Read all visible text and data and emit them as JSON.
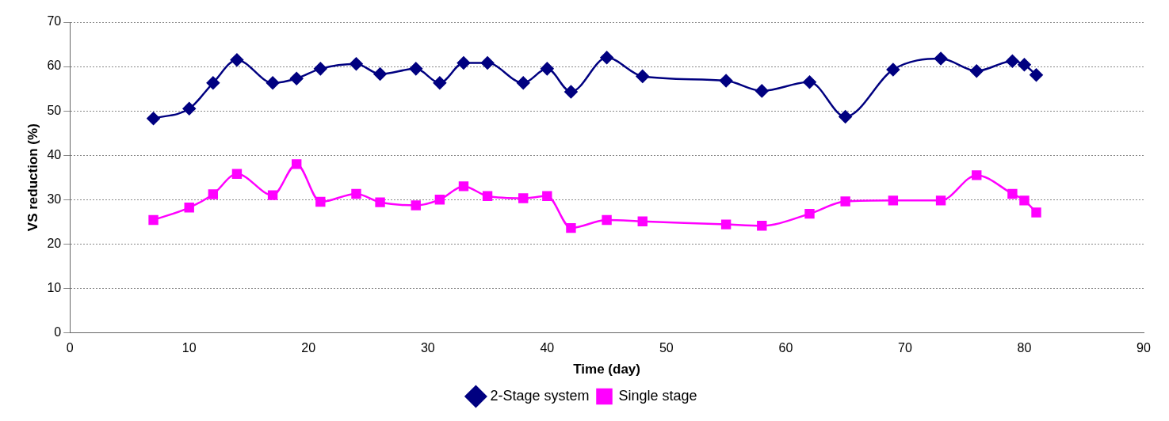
{
  "chart_data": {
    "type": "line",
    "xlabel": "Time (day)",
    "ylabel": "VS reduction (%)",
    "xlim": [
      0,
      90
    ],
    "xticks": [
      0,
      10,
      20,
      30,
      40,
      50,
      60,
      70,
      80,
      90
    ],
    "ylim": [
      0,
      70
    ],
    "yticks": [
      0,
      10,
      20,
      30,
      40,
      50,
      60,
      70
    ],
    "grid": "y",
    "legend": "bottom",
    "series": [
      {
        "name": "2-Stage system",
        "color": "#000080",
        "marker": "diamond",
        "x": [
          7,
          10,
          12,
          14,
          17,
          19,
          21,
          24,
          26,
          29,
          31,
          33,
          35,
          38,
          40,
          42,
          45,
          48,
          55,
          58,
          62,
          65,
          69,
          73,
          76,
          79,
          80,
          81
        ],
        "values": [
          48.3,
          50.5,
          56.3,
          61.5,
          56.3,
          57.3,
          59.5,
          60.6,
          58.3,
          59.5,
          56.3,
          60.8,
          60.8,
          56.3,
          59.5,
          54.3,
          62,
          57.8,
          56.8,
          54.5,
          56.5,
          48.7,
          59.3,
          61.8,
          59,
          61.2,
          60.4,
          58.1
        ]
      },
      {
        "name": "Single stage",
        "color": "#ff00ff",
        "marker": "square",
        "x": [
          7,
          10,
          12,
          14,
          17,
          19,
          21,
          24,
          26,
          29,
          31,
          33,
          35,
          38,
          40,
          42,
          45,
          48,
          55,
          58,
          62,
          65,
          69,
          73,
          76,
          79,
          80,
          81
        ],
        "values": [
          25.4,
          28.2,
          31.2,
          35.8,
          31,
          38,
          29.5,
          31.3,
          29.4,
          28.7,
          30,
          33,
          30.8,
          30.3,
          30.8,
          23.6,
          25.4,
          25.1,
          24.4,
          24.1,
          26.8,
          29.6,
          29.8,
          29.8,
          35.5,
          31.3,
          29.8,
          27.1
        ]
      }
    ]
  }
}
